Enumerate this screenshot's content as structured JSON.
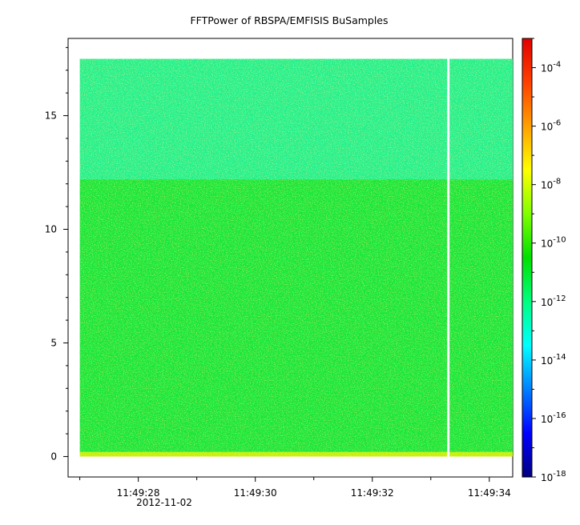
{
  "chart_data": {
    "type": "heatmap",
    "title": "FFTPower of RBSPA/EMFISIS  BuSamples",
    "xlabel": "",
    "ylabel": "",
    "x_range": [
      "11:49:26.8",
      "11:49:34.4"
    ],
    "data_x_range": [
      "11:49:27.0",
      "11:49:34.4"
    ],
    "x_ticks": [
      "11:49:28",
      "11:49:30",
      "11:49:32",
      "11:49:34"
    ],
    "x_date_label": "2012-11-02",
    "ylim": [
      -0.9,
      18.4
    ],
    "data_ylim": [
      0.0,
      17.5
    ],
    "y_ticks": [
      "0",
      "5",
      "10",
      "15"
    ],
    "data_gap": "11:49:33.3",
    "colorbar": {
      "scale": "log",
      "range": [
        1e-18,
        0.001
      ],
      "tick_base": "10",
      "tick_exponents": [
        "-18",
        "-16",
        "-14",
        "-12",
        "-10",
        "-8",
        "-6",
        "-4"
      ],
      "colors": [
        "#000080",
        "#0000ff",
        "#0080ff",
        "#00ffff",
        "#00ff80",
        "#00e000",
        "#80ff00",
        "#ffff00",
        "#ffa000",
        "#ff4000",
        "#e00000"
      ]
    },
    "bands": [
      {
        "y_from": 0.0,
        "y_to": 0.2,
        "level_exponent": -9,
        "color": "#c8f000"
      },
      {
        "y_from": 0.2,
        "y_to": 12.2,
        "level_exponent": -10.5,
        "color": "#16e63c"
      },
      {
        "y_from": 12.2,
        "y_to": 17.5,
        "level_exponent": -12.3,
        "color": "#22f08e"
      }
    ]
  }
}
